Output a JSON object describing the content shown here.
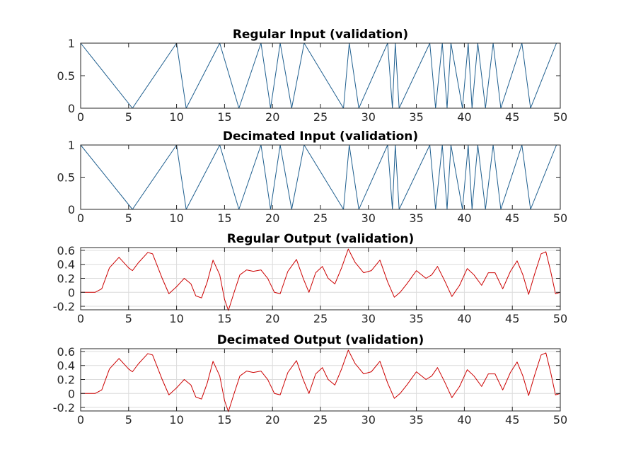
{
  "chart_data": [
    {
      "type": "line",
      "title": "Regular Input (validation)",
      "xlim": [
        0,
        50
      ],
      "ylim": [
        0,
        1
      ],
      "xticks": [
        "0",
        "5",
        "10",
        "15",
        "20",
        "25",
        "30",
        "35",
        "40",
        "45",
        "50"
      ],
      "yticks": [
        "0",
        "0.5",
        "1"
      ],
      "grid": false,
      "color": "#1f5f8f",
      "series": [
        {
          "x": [
            0,
            5.4,
            10.0,
            11.0,
            14.5,
            16.5,
            18.8,
            19.8,
            20.8,
            22.0,
            23.3,
            27.4,
            28.0,
            29.0,
            32.0,
            32.5,
            32.8,
            33.2,
            36.4,
            37.0,
            37.7,
            38.2,
            38.6,
            39.8,
            40.4,
            40.8,
            41.4,
            42.2,
            43.0,
            43.8,
            46.0,
            46.9,
            49.6,
            50.0
          ],
          "y": [
            1,
            0,
            1,
            0,
            1,
            0,
            1,
            0,
            1,
            0,
            1,
            0,
            1,
            0,
            1,
            0,
            1,
            0,
            1,
            0,
            1,
            0,
            1,
            0,
            1,
            0,
            1,
            0,
            1,
            0,
            1,
            0,
            1,
            1
          ]
        }
      ]
    },
    {
      "type": "line",
      "title": "Decimated Input (validation)",
      "xlim": [
        0,
        50
      ],
      "ylim": [
        0,
        1
      ],
      "xticks": [
        "0",
        "5",
        "10",
        "15",
        "20",
        "25",
        "30",
        "35",
        "40",
        "45",
        "50"
      ],
      "yticks": [
        "0",
        "0.5",
        "1"
      ],
      "grid": false,
      "color": "#1f5f8f",
      "series": [
        {
          "x": [
            0,
            5.4,
            10.0,
            11.0,
            14.5,
            16.5,
            18.8,
            19.8,
            20.8,
            22.0,
            23.3,
            27.4,
            28.0,
            29.0,
            32.0,
            32.5,
            32.8,
            33.2,
            36.4,
            37.0,
            37.7,
            38.2,
            38.6,
            39.8,
            40.4,
            40.8,
            41.4,
            42.2,
            43.0,
            43.8,
            46.0,
            46.9,
            49.6,
            50.0
          ],
          "y": [
            1,
            0,
            1,
            0,
            1,
            0,
            1,
            0,
            1,
            0,
            1,
            0,
            1,
            0,
            1,
            0,
            1,
            0,
            1,
            0,
            1,
            0,
            1,
            0,
            1,
            0,
            1,
            0,
            1,
            0,
            1,
            0,
            1,
            1
          ]
        }
      ]
    },
    {
      "type": "line",
      "title": "Regular Output (validation)",
      "xlim": [
        0,
        50
      ],
      "ylim": [
        -0.25,
        0.64
      ],
      "xticks": [
        "0",
        "5",
        "10",
        "15",
        "20",
        "25",
        "30",
        "35",
        "40",
        "45",
        "50"
      ],
      "yticks": [
        "-0.2",
        "0",
        "0.2",
        "0.4",
        "0.6"
      ],
      "ytick_values": [
        -0.2,
        0,
        0.2,
        0.4,
        0.6
      ],
      "grid": true,
      "color": "#cc0000",
      "series": [
        {
          "x": [
            0,
            1.5,
            2.2,
            3.0,
            4.0,
            5.0,
            5.4,
            6.0,
            7.0,
            7.5,
            8.5,
            9.2,
            10.0,
            10.8,
            11.5,
            12.0,
            12.6,
            13.2,
            13.8,
            14.5,
            15.0,
            15.4,
            16.0,
            16.6,
            17.3,
            18.0,
            18.8,
            19.5,
            20.2,
            20.8,
            21.6,
            22.5,
            23.2,
            23.8,
            24.5,
            25.2,
            25.8,
            26.5,
            27.2,
            27.9,
            28.6,
            29.5,
            30.3,
            31.2,
            32.0,
            32.7,
            33.3,
            34.0,
            35.0,
            36.0,
            36.6,
            37.2,
            38.0,
            38.7,
            39.5,
            40.3,
            41.0,
            41.8,
            42.5,
            43.2,
            44.0,
            44.8,
            45.5,
            46.1,
            46.7,
            47.3,
            48.0,
            48.5,
            49.0,
            49.5,
            50.0
          ],
          "y": [
            0,
            0,
            0.05,
            0.35,
            0.5,
            0.35,
            0.31,
            0.42,
            0.57,
            0.55,
            0.2,
            -0.02,
            0.08,
            0.2,
            0.12,
            -0.05,
            -0.08,
            0.15,
            0.46,
            0.25,
            -0.1,
            -0.26,
            0.0,
            0.25,
            0.32,
            0.3,
            0.32,
            0.2,
            0.0,
            -0.02,
            0.3,
            0.47,
            0.2,
            0.0,
            0.28,
            0.37,
            0.2,
            0.12,
            0.35,
            0.62,
            0.43,
            0.28,
            0.31,
            0.46,
            0.15,
            -0.07,
            0.0,
            0.12,
            0.31,
            0.2,
            0.25,
            0.37,
            0.15,
            -0.06,
            0.1,
            0.34,
            0.25,
            0.1,
            0.28,
            0.28,
            0.05,
            0.3,
            0.45,
            0.25,
            -0.03,
            0.25,
            0.55,
            0.58,
            0.3,
            -0.02,
            0.0
          ]
        }
      ]
    },
    {
      "type": "line",
      "title": "Decimated Output (validation)",
      "xlim": [
        0,
        50
      ],
      "ylim": [
        -0.25,
        0.64
      ],
      "xticks": [
        "0",
        "5",
        "10",
        "15",
        "20",
        "25",
        "30",
        "35",
        "40",
        "45",
        "50"
      ],
      "yticks": [
        "-0.2",
        "0",
        "0.2",
        "0.4",
        "0.6"
      ],
      "ytick_values": [
        -0.2,
        0,
        0.2,
        0.4,
        0.6
      ],
      "grid": true,
      "color": "#cc0000",
      "series": [
        {
          "x": [
            0,
            1.5,
            2.2,
            3.0,
            4.0,
            5.0,
            5.4,
            6.0,
            7.0,
            7.5,
            8.5,
            9.2,
            10.0,
            10.8,
            11.5,
            12.0,
            12.6,
            13.2,
            13.8,
            14.5,
            15.0,
            15.4,
            16.0,
            16.6,
            17.3,
            18.0,
            18.8,
            19.5,
            20.2,
            20.8,
            21.6,
            22.5,
            23.2,
            23.8,
            24.5,
            25.2,
            25.8,
            26.5,
            27.2,
            27.9,
            28.6,
            29.5,
            30.3,
            31.2,
            32.0,
            32.7,
            33.3,
            34.0,
            35.0,
            36.0,
            36.6,
            37.2,
            38.0,
            38.7,
            39.5,
            40.3,
            41.0,
            41.8,
            42.5,
            43.2,
            44.0,
            44.8,
            45.5,
            46.1,
            46.7,
            47.3,
            48.0,
            48.5,
            49.0,
            49.5,
            50.0
          ],
          "y": [
            0,
            0,
            0.05,
            0.35,
            0.5,
            0.35,
            0.31,
            0.42,
            0.57,
            0.55,
            0.2,
            -0.02,
            0.08,
            0.2,
            0.12,
            -0.05,
            -0.08,
            0.15,
            0.46,
            0.25,
            -0.1,
            -0.26,
            0.0,
            0.25,
            0.32,
            0.3,
            0.32,
            0.2,
            0.0,
            -0.02,
            0.3,
            0.47,
            0.2,
            0.0,
            0.28,
            0.37,
            0.2,
            0.12,
            0.35,
            0.62,
            0.43,
            0.28,
            0.31,
            0.46,
            0.15,
            -0.07,
            0.0,
            0.12,
            0.31,
            0.2,
            0.25,
            0.37,
            0.15,
            -0.06,
            0.1,
            0.34,
            0.25,
            0.1,
            0.28,
            0.28,
            0.05,
            0.3,
            0.45,
            0.25,
            -0.03,
            0.25,
            0.55,
            0.58,
            0.3,
            -0.02,
            0.0
          ]
        }
      ]
    }
  ]
}
